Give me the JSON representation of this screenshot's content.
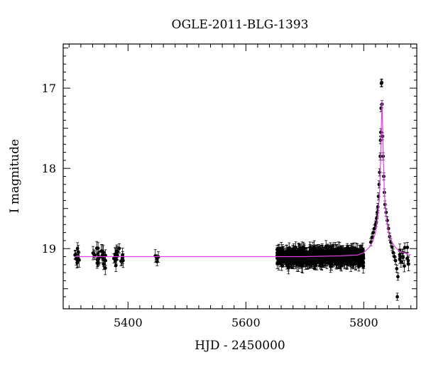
{
  "chart_data": {
    "type": "scatter",
    "title": "OGLE-2011-BLG-1393",
    "xlabel": "HJD - 2450000",
    "ylabel": "I magnitude",
    "xlim": [
      5290,
      5890
    ],
    "ylim": [
      19.75,
      16.45
    ],
    "y_inverted": true,
    "x_ticks": [
      5400,
      5600,
      5800
    ],
    "y_ticks": [
      17,
      18,
      19
    ],
    "grid": false,
    "legend": "none",
    "colors": {
      "data": "#000000",
      "model": "#e040e0",
      "axes": "#000000"
    },
    "model": {
      "name": "",
      "description": "microlensing model curve",
      "baseline_mag": 19.1,
      "peak_mag": 17.15,
      "t0": 5831,
      "tE": 18,
      "points": [
        [
          5310,
          19.1
        ],
        [
          5400,
          19.1
        ],
        [
          5500,
          19.1
        ],
        [
          5600,
          19.1
        ],
        [
          5700,
          19.1
        ],
        [
          5760,
          19.09
        ],
        [
          5790,
          19.08
        ],
        [
          5800,
          19.05
        ],
        [
          5810,
          18.98
        ],
        [
          5815,
          18.92
        ],
        [
          5820,
          18.8
        ],
        [
          5824,
          18.6
        ],
        [
          5827,
          18.3
        ],
        [
          5829,
          17.8
        ],
        [
          5830,
          17.45
        ],
        [
          5831,
          17.15
        ],
        [
          5832,
          17.45
        ],
        [
          5833,
          17.8
        ],
        [
          5835,
          18.3
        ],
        [
          5838,
          18.6
        ],
        [
          5842,
          18.8
        ],
        [
          5848,
          18.92
        ],
        [
          5853,
          18.98
        ],
        [
          5862,
          19.04
        ],
        [
          5880,
          19.08
        ]
      ]
    },
    "series": [
      {
        "name": "",
        "clusters": [
          {
            "x_range": [
              5310,
              5318
            ],
            "n": 10,
            "mag_center": 19.1,
            "mag_spread": 0.14,
            "err": 0.07
          },
          {
            "x_range": [
              5340,
              5362
            ],
            "n": 26,
            "mag_center": 19.1,
            "mag_spread": 0.1,
            "err": 0.07
          },
          {
            "x_range": [
              5375,
              5392
            ],
            "n": 18,
            "mag_center": 19.1,
            "mag_spread": 0.1,
            "err": 0.07
          },
          {
            "x_range": [
              5446,
              5452
            ],
            "n": 4,
            "mag_center": 19.12,
            "mag_spread": 0.08,
            "err": 0.06
          },
          {
            "x_range": [
              5653,
              5800
            ],
            "n": 700,
            "mag_center": 19.1,
            "mag_spread": 0.1,
            "err": 0.07
          },
          {
            "x_range": [
              5860,
              5878
            ],
            "n": 12,
            "mag_center": 19.1,
            "mag_spread": 0.1,
            "err": 0.07
          }
        ],
        "peak_points": [
          [
            5812,
            18.92
          ],
          [
            5814,
            18.86
          ],
          [
            5816,
            18.8
          ],
          [
            5818,
            18.75
          ],
          [
            5820,
            18.7
          ],
          [
            5821,
            18.68
          ],
          [
            5822,
            18.62
          ],
          [
            5823,
            18.55
          ],
          [
            5824,
            18.48
          ],
          [
            5825,
            18.35
          ],
          [
            5826,
            18.2
          ],
          [
            5827,
            18.05
          ],
          [
            5828,
            17.85
          ],
          [
            5828.5,
            17.65
          ],
          [
            5829,
            17.55
          ],
          [
            5829.5,
            17.25
          ],
          [
            5830,
            16.94
          ],
          [
            5830.5,
            16.93
          ],
          [
            5831,
            17.2
          ],
          [
            5832,
            17.6
          ],
          [
            5833,
            17.85
          ],
          [
            5834,
            18.1
          ],
          [
            5835,
            18.3
          ],
          [
            5836,
            18.45
          ],
          [
            5838,
            18.55
          ],
          [
            5840,
            18.65
          ],
          [
            5842,
            18.75
          ],
          [
            5844,
            18.85
          ],
          [
            5846,
            18.92
          ],
          [
            5848,
            18.98
          ],
          [
            5850,
            19.05
          ],
          [
            5852,
            19.1
          ],
          [
            5854,
            19.15
          ],
          [
            5856,
            19.25
          ],
          [
            5857,
            19.6
          ],
          [
            5858,
            19.35
          ],
          [
            5862,
            19.1
          ],
          [
            5866,
            19.05
          ]
        ]
      }
    ]
  }
}
